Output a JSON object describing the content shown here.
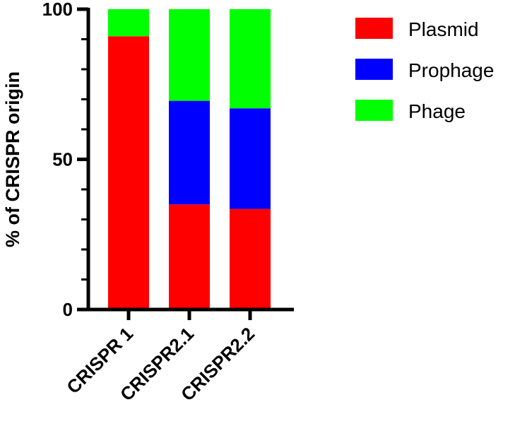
{
  "chart_data": {
    "type": "bar",
    "stacked": true,
    "categories": [
      "CRISPR 1",
      "CRISPR2.1",
      "CRISPR2.2"
    ],
    "series": [
      {
        "name": "Plasmid",
        "color": "#ff0000",
        "values": [
          91,
          35,
          33.5
        ]
      },
      {
        "name": "Prophage",
        "color": "#0000ff",
        "values": [
          0,
          34.5,
          33.5
        ]
      },
      {
        "name": "Phage",
        "color": "#00ff00",
        "values": [
          9,
          30.5,
          33
        ]
      }
    ],
    "xlabel": "",
    "ylabel": "% of CRISPR origin",
    "ylim": [
      0,
      100
    ],
    "yticks": [
      0,
      50,
      100
    ],
    "grid": false,
    "legend_position": "right"
  }
}
